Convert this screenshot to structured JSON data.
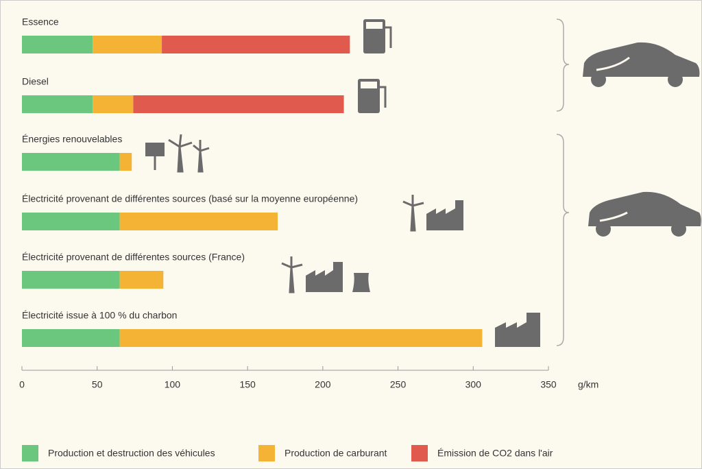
{
  "chart_data": {
    "type": "stacked-bar-horizontal",
    "categories": [
      "Essence",
      "Diesel",
      "Énergies renouvelables",
      "Électricité provenant de différentes sources (basé sur la moyenne européenne)",
      "Électricité provenant de différentes sources (France)",
      "Électricité issue à 100 % du charbon"
    ],
    "series": [
      {
        "name": "Production et destruction des véhicules",
        "color": "#6cc77e",
        "values": [
          47,
          47,
          65,
          65,
          65,
          65
        ]
      },
      {
        "name": "Production de carburant",
        "color": "#f5b335",
        "values": [
          46,
          27,
          8,
          105,
          29,
          241
        ]
      },
      {
        "name": "Émission de CO2 dans l'air",
        "color": "#e05a4e",
        "values": [
          125,
          140,
          null,
          null,
          null,
          null
        ]
      }
    ],
    "x_unit": "g/km",
    "xlim": [
      0,
      350
    ],
    "xticks": [
      0,
      50,
      100,
      150,
      200,
      250,
      300,
      350
    ]
  }
}
